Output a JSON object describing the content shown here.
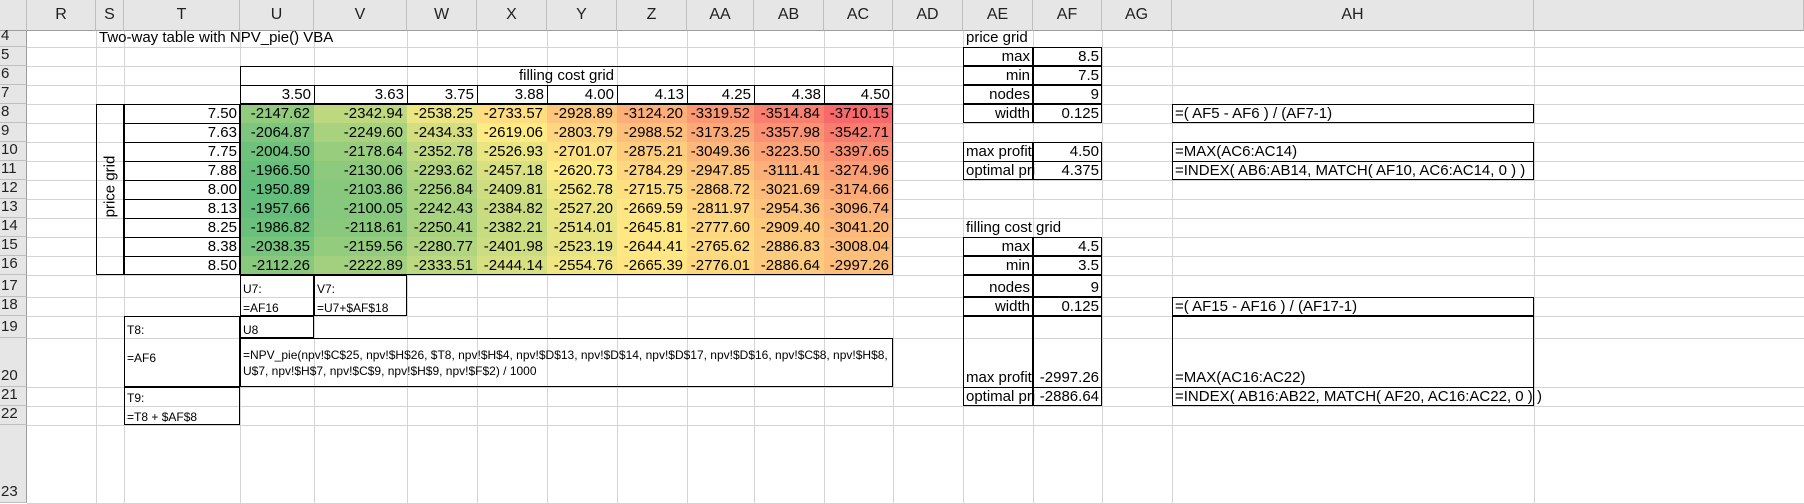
{
  "columns": [
    "R",
    "S",
    "T",
    "U",
    "V",
    "W",
    "X",
    "Y",
    "Z",
    "AA",
    "AB",
    "AC",
    "AD",
    "AE",
    "AF",
    "AG",
    "AH"
  ],
  "rows": [
    "4",
    "5",
    "6",
    "7",
    "8",
    "9",
    "10",
    "11",
    "12",
    "13",
    "14",
    "15",
    "16",
    "17",
    "18",
    "19",
    "20",
    "21",
    "22",
    "23"
  ],
  "title": "Two-way table with NPV_pie() VBA",
  "filling_header": "filling cost grid",
  "price_axis_label": "price grid",
  "col_values": [
    "3.50",
    "3.63",
    "3.75",
    "3.88",
    "4.00",
    "4.13",
    "4.25",
    "4.38",
    "4.50"
  ],
  "row_values": [
    "7.50",
    "7.63",
    "7.75",
    "7.88",
    "8.00",
    "8.13",
    "8.25",
    "8.38",
    "8.50"
  ],
  "matrix": [
    [
      "-2147.62",
      "-2342.94",
      "-2538.25",
      "-2733.57",
      "-2928.89",
      "-3124.20",
      "-3319.52",
      "-3514.84",
      "-3710.15"
    ],
    [
      "-2064.87",
      "-2249.60",
      "-2434.33",
      "-2619.06",
      "-2803.79",
      "-2988.52",
      "-3173.25",
      "-3357.98",
      "-3542.71"
    ],
    [
      "-2004.50",
      "-2178.64",
      "-2352.78",
      "-2526.93",
      "-2701.07",
      "-2875.21",
      "-3049.36",
      "-3223.50",
      "-3397.65"
    ],
    [
      "-1966.50",
      "-2130.06",
      "-2293.62",
      "-2457.18",
      "-2620.73",
      "-2784.29",
      "-2947.85",
      "-3111.41",
      "-3274.96"
    ],
    [
      "-1950.89",
      "-2103.86",
      "-2256.84",
      "-2409.81",
      "-2562.78",
      "-2715.75",
      "-2868.72",
      "-3021.69",
      "-3174.66"
    ],
    [
      "-1957.66",
      "-2100.05",
      "-2242.43",
      "-2384.82",
      "-2527.20",
      "-2669.59",
      "-2811.97",
      "-2954.36",
      "-3096.74"
    ],
    [
      "-1986.82",
      "-2118.61",
      "-2250.41",
      "-2382.21",
      "-2514.01",
      "-2645.81",
      "-2777.60",
      "-2909.40",
      "-3041.20"
    ],
    [
      "-2038.35",
      "-2159.56",
      "-2280.77",
      "-2401.98",
      "-2523.19",
      "-2644.41",
      "-2765.62",
      "-2886.83",
      "-3008.04"
    ],
    [
      "-2112.26",
      "-2222.89",
      "-2333.51",
      "-2444.14",
      "-2554.76",
      "-2665.39",
      "-2776.01",
      "-2886.64",
      "-2997.26"
    ]
  ],
  "heat_colors": {
    "best": "#63be7b",
    "mid": "#ffeb84",
    "worst": "#f8696b"
  },
  "notes": {
    "u17": "U7:",
    "v17": "V7:",
    "u18": "=AF16",
    "v18": "=U7+$AF$18",
    "t19": "T8:",
    "u19": "U8",
    "t20": "=AF6",
    "u20": "=NPV_pie(npv!$C$25, npv!$H$26, $T8, npv!$H$4, npv!$D$13, npv!$D$14, npv!$D$17, npv!$D$16, npv!$C$8, npv!$H$8,  U$7, npv!$H$7, npv!$C$9, npv!$H$9, npv!$F$2) / 1000",
    "t21": "T9:",
    "t22": "=T8 + $AF$8"
  },
  "price_grid": {
    "title": "price grid",
    "max_label": "max",
    "max": "8.5",
    "min_label": "min",
    "min": "7.5",
    "nodes_label": "nodes",
    "nodes": "9",
    "width_label": "width",
    "width": "0.125",
    "width_formula": "=( AF5 - AF6 ) / (AF7-1)",
    "maxprofit_label": "max profit",
    "maxprofit": "4.50",
    "maxprofit_formula": "=MAX(AC6:AC14)",
    "optimal_label": "optimal pri",
    "optimal": "4.375",
    "optimal_formula": "=INDEX( AB6:AB14, MATCH( AF10, AC6:AC14, 0 ) )"
  },
  "filling_grid": {
    "title": "filling cost grid",
    "max_label": "max",
    "max": "4.5",
    "min_label": "min",
    "min": "3.5",
    "nodes_label": "nodes",
    "nodes": "9",
    "width_label": "width",
    "width": "0.125",
    "width_formula": "=( AF15 - AF16 ) / (AF17-1)",
    "maxprofit_label": "max profit",
    "maxprofit": "-2997.26",
    "maxprofit_formula": "=MAX(AC16:AC22)",
    "optimal_label": "optimal pri",
    "optimal": "-2886.64",
    "optimal_formula": "=INDEX( AB16:AB22, MATCH( AF20, AC16:AC22, 0 ) )"
  }
}
